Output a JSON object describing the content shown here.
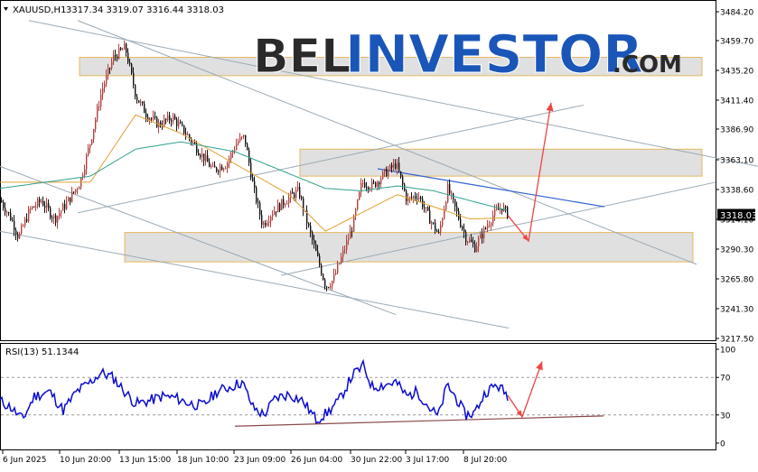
{
  "header": {
    "symbol": "XAUUSD,H1",
    "ohlc": "3317.34 3319.07 3316.44 3318.03"
  },
  "watermark": {
    "part1": "BEL",
    "part2": "INVESTOR",
    "part3": ".COM"
  },
  "rsi_header": "RSI(13) 51.1344",
  "current_price_label": "3318.03",
  "colors": {
    "bull": "#b0413e",
    "bear": "#111111",
    "ma_fast": "#e0a030",
    "ma_slow": "#30a090",
    "rsi_line": "#0a0ad0",
    "arrow": "#ee4444",
    "zone_fill": "#e0e0e0",
    "zone_border": "#e8b860",
    "trendline": "#9aaab6",
    "blue_line": "#3060d0",
    "watermark_dark": "#2a2a2a",
    "watermark_blue": "#1a56b8"
  },
  "chart_data": [
    {
      "type": "candlestick",
      "symbol": "XAUUSD",
      "timeframe": "H1",
      "last_bar": {
        "open": 3317.34,
        "high": 3319.07,
        "low": 3316.44,
        "close": 3318.03
      },
      "x_tick_labels": [
        "6 Jun 2025",
        "10 Jun 20:00",
        "13 Jun 15:00",
        "18 Jun 10:00",
        "23 Jun 09:00",
        "26 Jun 04:00",
        "30 Jun 22:00",
        "3 Jul 17:00",
        "8 Jul 20:00"
      ],
      "y_tick_labels": [
        "3484.20",
        "3459.70",
        "3435.20",
        "3411.40",
        "3386.90",
        "3363.10",
        "3338.60",
        "3314.10",
        "3290.30",
        "3265.80",
        "3241.30",
        "3217.50"
      ],
      "ylim": [
        3212,
        3490
      ],
      "path_points": [
        {
          "t": 0,
          "price": 3330
        },
        {
          "t": 12,
          "price": 3315
        },
        {
          "t": 20,
          "price": 3300
        },
        {
          "t": 32,
          "price": 3322
        },
        {
          "t": 45,
          "price": 3330
        },
        {
          "t": 60,
          "price": 3315
        },
        {
          "t": 75,
          "price": 3330
        },
        {
          "t": 88,
          "price": 3345
        },
        {
          "t": 100,
          "price": 3380
        },
        {
          "t": 112,
          "price": 3420
        },
        {
          "t": 125,
          "price": 3447
        },
        {
          "t": 138,
          "price": 3455
        },
        {
          "t": 150,
          "price": 3415
        },
        {
          "t": 162,
          "price": 3400
        },
        {
          "t": 175,
          "price": 3392
        },
        {
          "t": 190,
          "price": 3398
        },
        {
          "t": 205,
          "price": 3385
        },
        {
          "t": 220,
          "price": 3370
        },
        {
          "t": 235,
          "price": 3355
        },
        {
          "t": 250,
          "price": 3360
        },
        {
          "t": 262,
          "price": 3378
        },
        {
          "t": 270,
          "price": 3382
        },
        {
          "t": 280,
          "price": 3340
        },
        {
          "t": 290,
          "price": 3310
        },
        {
          "t": 300,
          "price": 3320
        },
        {
          "t": 315,
          "price": 3330
        },
        {
          "t": 330,
          "price": 3338
        },
        {
          "t": 340,
          "price": 3310
        },
        {
          "t": 350,
          "price": 3285
        },
        {
          "t": 360,
          "price": 3260
        },
        {
          "t": 368,
          "price": 3265
        },
        {
          "t": 378,
          "price": 3285
        },
        {
          "t": 390,
          "price": 3310
        },
        {
          "t": 400,
          "price": 3345
        },
        {
          "t": 412,
          "price": 3342
        },
        {
          "t": 425,
          "price": 3352
        },
        {
          "t": 438,
          "price": 3360
        },
        {
          "t": 450,
          "price": 3330
        },
        {
          "t": 462,
          "price": 3335
        },
        {
          "t": 475,
          "price": 3315
        },
        {
          "t": 485,
          "price": 3302
        },
        {
          "t": 495,
          "price": 3340
        },
        {
          "t": 505,
          "price": 3320
        },
        {
          "t": 515,
          "price": 3300
        },
        {
          "t": 525,
          "price": 3292
        },
        {
          "t": 535,
          "price": 3305
        },
        {
          "t": 545,
          "price": 3318
        },
        {
          "t": 555,
          "price": 3325
        },
        {
          "t": 562,
          "price": 3318
        }
      ],
      "moving_averages": [
        {
          "name": "",
          "color": "#e0a030",
          "points": [
            {
              "t": 0,
              "price": 3345
            },
            {
              "t": 100,
              "price": 3345
            },
            {
              "t": 150,
              "price": 3400
            },
            {
              "t": 200,
              "price": 3385
            },
            {
              "t": 260,
              "price": 3360
            },
            {
              "t": 320,
              "price": 3335
            },
            {
              "t": 360,
              "price": 3305
            },
            {
              "t": 400,
              "price": 3320
            },
            {
              "t": 440,
              "price": 3335
            },
            {
              "t": 480,
              "price": 3325
            },
            {
              "t": 520,
              "price": 3315
            },
            {
              "t": 562,
              "price": 3316
            }
          ]
        },
        {
          "name": "",
          "color": "#30a090",
          "points": [
            {
              "t": 0,
              "price": 3340
            },
            {
              "t": 100,
              "price": 3350
            },
            {
              "t": 150,
              "price": 3372
            },
            {
              "t": 200,
              "price": 3378
            },
            {
              "t": 260,
              "price": 3370
            },
            {
              "t": 320,
              "price": 3352
            },
            {
              "t": 360,
              "price": 3340
            },
            {
              "t": 400,
              "price": 3338
            },
            {
              "t": 440,
              "price": 3342
            },
            {
              "t": 480,
              "price": 3338
            },
            {
              "t": 520,
              "price": 3330
            },
            {
              "t": 562,
              "price": 3322
            }
          ]
        }
      ],
      "zones": [
        {
          "t_start": 88,
          "t_end": 777,
          "price_top": 3447,
          "price_bottom": 3432
        },
        {
          "t_start": 332,
          "t_end": 777,
          "price_top": 3372,
          "price_bottom": 3350
        },
        {
          "t_start": 138,
          "t_end": 767,
          "price_top": 3304,
          "price_bottom": 3280
        }
      ],
      "trend_lines": [
        {
          "kind": "gray",
          "t1": 32,
          "p1": 3477,
          "t2": 839,
          "p2": 3358
        },
        {
          "kind": "gray",
          "t1": 86,
          "p1": 3477,
          "t2": 771,
          "p2": 3278
        },
        {
          "kind": "gray",
          "t1": 0,
          "p1": 3358,
          "t2": 438,
          "p2": 3237
        },
        {
          "kind": "gray",
          "t1": 0,
          "p1": 3305,
          "t2": 563,
          "p2": 3226
        },
        {
          "kind": "gray",
          "t1": 86,
          "p1": 3320,
          "t2": 646,
          "p2": 3408
        },
        {
          "kind": "gray",
          "t1": 311,
          "p1": 3269,
          "t2": 792,
          "p2": 3345
        },
        {
          "kind": "blue",
          "t1": 418,
          "p1": 3356,
          "t2": 669,
          "p2": 3325
        }
      ],
      "projection_arrow": [
        {
          "t": 562,
          "price": 3318
        },
        {
          "t": 585,
          "price": 3297
        },
        {
          "t": 610,
          "price": 3410
        }
      ]
    },
    {
      "type": "line",
      "indicator": "RSI(13)",
      "current_value": 51.1344,
      "y_tick_labels": [
        "100",
        "70",
        "30",
        "0"
      ],
      "levels": [
        70,
        30
      ],
      "ylim": [
        0,
        100
      ],
      "path_points": [
        {
          "t": 0,
          "value": 45
        },
        {
          "t": 12,
          "value": 38
        },
        {
          "t": 25,
          "value": 25
        },
        {
          "t": 38,
          "value": 50
        },
        {
          "t": 55,
          "value": 55
        },
        {
          "t": 70,
          "value": 35
        },
        {
          "t": 85,
          "value": 55
        },
        {
          "t": 100,
          "value": 65
        },
        {
          "t": 112,
          "value": 75
        },
        {
          "t": 125,
          "value": 70
        },
        {
          "t": 138,
          "value": 55
        },
        {
          "t": 150,
          "value": 42
        },
        {
          "t": 165,
          "value": 45
        },
        {
          "t": 180,
          "value": 50
        },
        {
          "t": 195,
          "value": 48
        },
        {
          "t": 210,
          "value": 42
        },
        {
          "t": 225,
          "value": 40
        },
        {
          "t": 240,
          "value": 55
        },
        {
          "t": 255,
          "value": 60
        },
        {
          "t": 268,
          "value": 65
        },
        {
          "t": 280,
          "value": 38
        },
        {
          "t": 292,
          "value": 30
        },
        {
          "t": 305,
          "value": 48
        },
        {
          "t": 320,
          "value": 52
        },
        {
          "t": 335,
          "value": 45
        },
        {
          "t": 350,
          "value": 25
        },
        {
          "t": 362,
          "value": 32
        },
        {
          "t": 375,
          "value": 45
        },
        {
          "t": 390,
          "value": 72
        },
        {
          "t": 402,
          "value": 82
        },
        {
          "t": 412,
          "value": 60
        },
        {
          "t": 425,
          "value": 62
        },
        {
          "t": 438,
          "value": 65
        },
        {
          "t": 450,
          "value": 50
        },
        {
          "t": 462,
          "value": 55
        },
        {
          "t": 475,
          "value": 38
        },
        {
          "t": 485,
          "value": 28
        },
        {
          "t": 495,
          "value": 62
        },
        {
          "t": 505,
          "value": 48
        },
        {
          "t": 515,
          "value": 30
        },
        {
          "t": 525,
          "value": 32
        },
        {
          "t": 538,
          "value": 55
        },
        {
          "t": 550,
          "value": 62
        },
        {
          "t": 562,
          "value": 51
        }
      ],
      "trend_line": {
        "t1": 260,
        "v1": 18,
        "t2": 668,
        "v2": 29
      },
      "projection_arrow": [
        {
          "t": 562,
          "value": 51
        },
        {
          "t": 578,
          "value": 28
        },
        {
          "t": 600,
          "value": 87
        }
      ]
    }
  ]
}
